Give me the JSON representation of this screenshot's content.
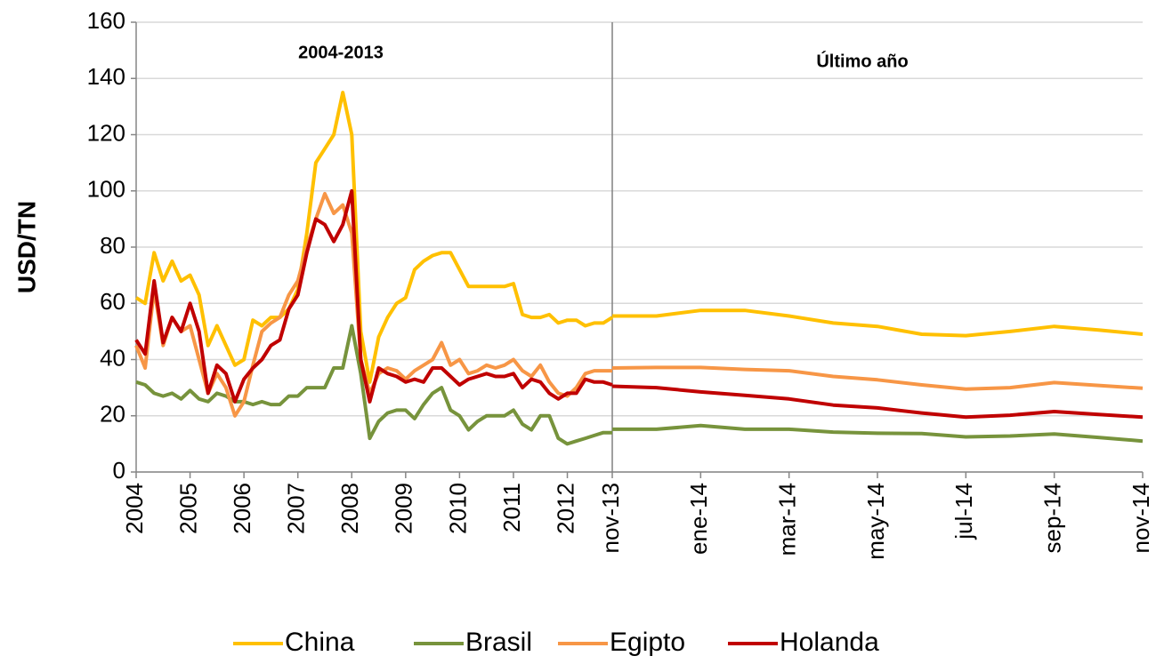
{
  "chart_data": [
    {
      "type": "line",
      "y_label": "USD/TN",
      "annotation": "2004-2013",
      "ylim": [
        0,
        160
      ],
      "yticks": [
        0,
        20,
        40,
        60,
        80,
        100,
        120,
        140,
        160
      ],
      "grid": true,
      "categories": [
        "2004",
        null,
        null,
        null,
        null,
        null,
        "2005",
        null,
        null,
        null,
        null,
        null,
        "2006",
        null,
        null,
        null,
        null,
        null,
        "2007",
        null,
        null,
        null,
        null,
        null,
        "2008",
        null,
        null,
        null,
        null,
        null,
        "2009",
        null,
        null,
        null,
        null,
        null,
        "2010",
        null,
        null,
        null,
        null,
        null,
        "2011",
        null,
        null,
        null,
        null,
        null,
        "2012",
        null,
        null,
        null,
        null,
        null
      ],
      "series": [
        {
          "name": "China",
          "color": "#FFC000",
          "values": [
            62,
            60,
            78,
            68,
            75,
            68,
            70,
            63,
            45,
            52,
            45,
            38,
            40,
            54,
            52,
            55,
            55,
            58,
            65,
            85,
            110,
            115,
            120,
            135,
            120,
            50,
            32,
            48,
            55,
            60,
            62,
            72,
            75,
            77,
            78,
            78,
            72,
            66,
            66,
            66,
            66,
            66,
            67,
            56,
            55,
            55,
            56,
            53,
            54,
            54,
            52,
            53,
            53,
            55
          ]
        },
        {
          "name": "Brasil",
          "color": "#77933C",
          "values": [
            32,
            31,
            28,
            27,
            28,
            26,
            29,
            26,
            25,
            28,
            27,
            25,
            25,
            24,
            25,
            24,
            24,
            27,
            27,
            30,
            30,
            30,
            37,
            37,
            52,
            35,
            12,
            18,
            21,
            22,
            22,
            19,
            24,
            28,
            30,
            22,
            20,
            15,
            18,
            20,
            20,
            20,
            22,
            17,
            15,
            20,
            20,
            12,
            10,
            11,
            12,
            13,
            14,
            14
          ]
        },
        {
          "name": "Egipto",
          "color": "#F79646",
          "values": [
            45,
            37,
            65,
            45,
            55,
            50,
            52,
            40,
            28,
            35,
            30,
            20,
            25,
            38,
            50,
            53,
            55,
            63,
            68,
            80,
            90,
            99,
            92,
            95,
            85,
            40,
            28,
            35,
            37,
            36,
            33,
            36,
            38,
            40,
            46,
            38,
            40,
            35,
            36,
            38,
            37,
            38,
            40,
            36,
            34,
            38,
            32,
            28,
            27,
            30,
            35,
            36,
            36,
            36
          ]
        },
        {
          "name": "Holanda",
          "color": "#C00000",
          "values": [
            47,
            42,
            68,
            46,
            55,
            50,
            60,
            50,
            28,
            38,
            35,
            25,
            33,
            37,
            40,
            45,
            47,
            58,
            63,
            78,
            90,
            88,
            82,
            88,
            100,
            40,
            25,
            37,
            35,
            34,
            32,
            33,
            32,
            37,
            37,
            34,
            31,
            33,
            34,
            35,
            34,
            34,
            35,
            30,
            33,
            32,
            28,
            26,
            28,
            28,
            33,
            32,
            32,
            31
          ]
        }
      ]
    },
    {
      "type": "line",
      "annotation": "Último año",
      "ylim": [
        0,
        160
      ],
      "categories": [
        "nov-13",
        null,
        "ene-14",
        null,
        "mar-14",
        null,
        "may-14",
        null,
        "jul-14",
        null,
        "sep-14",
        null,
        "nov-14"
      ],
      "series": [
        {
          "color": "#FFC000",
          "values": [
            55.5,
            55.5,
            57.5,
            57.5,
            55.5,
            53,
            51.8,
            49,
            48.5,
            50,
            51.8,
            50.5,
            49
          ]
        },
        {
          "color": "#77933C",
          "values": [
            15.2,
            15.2,
            16.5,
            15.2,
            15.2,
            14.2,
            13.8,
            13.7,
            12.5,
            12.8,
            13.5,
            12.3,
            11
          ]
        },
        {
          "color": "#F79646",
          "values": [
            37,
            37.2,
            37.2,
            36.5,
            36,
            34,
            32.8,
            31,
            29.5,
            30,
            31.8,
            30.8,
            29.8
          ]
        },
        {
          "color": "#C00000",
          "values": [
            30.5,
            30,
            28.5,
            27.3,
            26,
            23.8,
            22.8,
            21,
            19.5,
            20.2,
            21.5,
            20.5,
            19.5
          ]
        }
      ]
    }
  ]
}
